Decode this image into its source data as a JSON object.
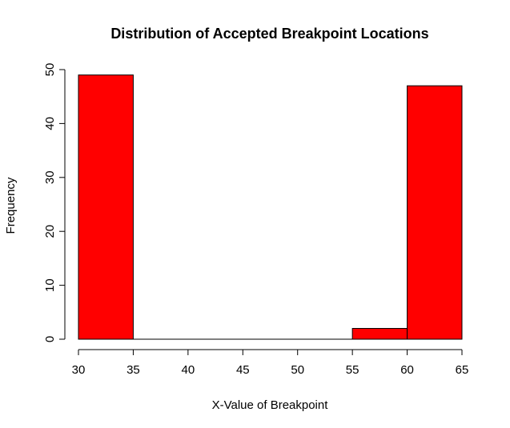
{
  "chart_data": {
    "type": "bar",
    "title": "Distribution of Accepted Breakpoint Locations",
    "xlabel": "X-Value of Breakpoint",
    "ylabel": "Frequency",
    "bin_edges": [
      30,
      35,
      40,
      45,
      50,
      55,
      60,
      65
    ],
    "values": [
      49,
      0,
      0,
      0,
      0,
      2,
      47
    ],
    "xlim": [
      30,
      65
    ],
    "ylim": [
      0,
      50
    ],
    "x_ticks": [
      30,
      35,
      40,
      45,
      50,
      55,
      60,
      65
    ],
    "y_ticks": [
      0,
      10,
      20,
      30,
      40,
      50
    ],
    "bar_color": "#ff0000",
    "grid": false
  }
}
